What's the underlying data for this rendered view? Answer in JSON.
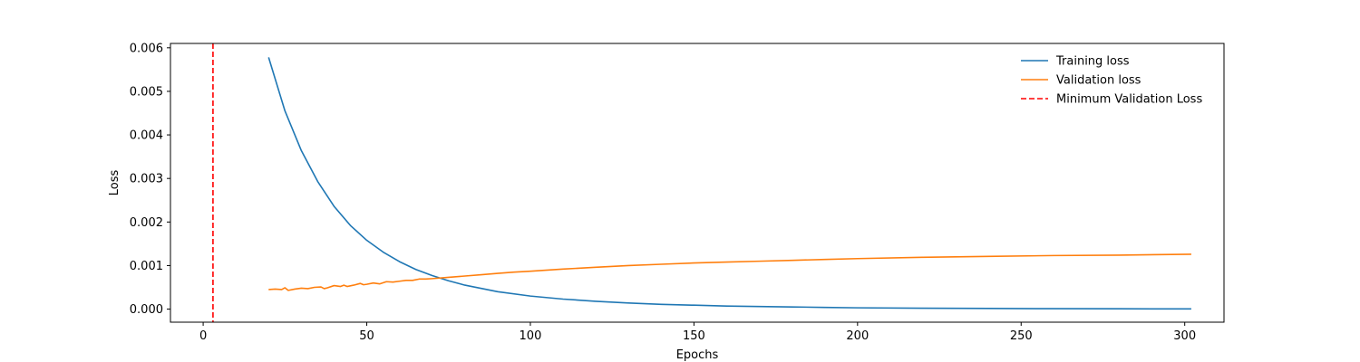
{
  "chart_data": {
    "type": "line",
    "title": "",
    "xlabel": "Epochs",
    "ylabel": "Loss",
    "xlim": [
      -10,
      312
    ],
    "ylim": [
      -0.0003,
      0.0061
    ],
    "xticks": [
      0,
      50,
      100,
      150,
      200,
      250,
      300
    ],
    "yticks": [
      0.0,
      0.001,
      0.002,
      0.003,
      0.004,
      0.005,
      0.006
    ],
    "ytick_labels": [
      "0.000",
      "0.001",
      "0.002",
      "0.003",
      "0.004",
      "0.005",
      "0.006"
    ],
    "grid": false,
    "legend_position": "top-right",
    "series": [
      {
        "name": "Training loss",
        "color": "#1f77b4",
        "x": [
          20,
          25,
          30,
          35,
          40,
          45,
          50,
          55,
          60,
          65,
          70,
          75,
          80,
          90,
          100,
          110,
          120,
          130,
          140,
          150,
          160,
          170,
          180,
          190,
          200,
          220,
          240,
          260,
          280,
          302
        ],
        "y": [
          0.00578,
          0.00455,
          0.00364,
          0.00293,
          0.00236,
          0.00192,
          0.00158,
          0.00131,
          0.00109,
          0.00091,
          0.00077,
          0.00065,
          0.00055,
          0.0004,
          0.0003,
          0.00023,
          0.00018,
          0.00014,
          0.00011,
          9e-05,
          7e-05,
          6e-05,
          5e-05,
          4e-05,
          3e-05,
          2e-05,
          1.5e-05,
          1e-05,
          7e-06,
          5e-06
        ]
      },
      {
        "name": "Validation loss",
        "color": "#ff7f0e",
        "x": [
          20,
          22,
          24,
          25,
          26,
          28,
          30,
          32,
          34,
          36,
          37,
          38,
          40,
          42,
          43,
          44,
          46,
          48,
          49,
          50,
          52,
          54,
          56,
          58,
          60,
          62,
          64,
          66,
          68,
          70,
          75,
          80,
          85,
          90,
          95,
          100,
          110,
          120,
          130,
          140,
          150,
          160,
          170,
          180,
          190,
          200,
          220,
          240,
          260,
          280,
          302
        ],
        "y": [
          0.00045,
          0.00046,
          0.00045,
          0.00049,
          0.00043,
          0.00046,
          0.00048,
          0.00047,
          0.0005,
          0.00051,
          0.00047,
          0.00049,
          0.00054,
          0.00052,
          0.00055,
          0.00052,
          0.00055,
          0.00059,
          0.00056,
          0.00057,
          0.0006,
          0.00058,
          0.00063,
          0.00062,
          0.00064,
          0.00066,
          0.00066,
          0.00069,
          0.00069,
          0.0007,
          0.00073,
          0.00076,
          0.00079,
          0.00082,
          0.00085,
          0.00087,
          0.00092,
          0.00096,
          0.001,
          0.00103,
          0.00106,
          0.00108,
          0.0011,
          0.00112,
          0.00114,
          0.00116,
          0.00119,
          0.00121,
          0.00123,
          0.00124,
          0.00126
        ]
      }
    ],
    "vline": {
      "name": "Minimum Validation Loss",
      "x": 3,
      "color": "#ff0000",
      "style": "dashed"
    }
  }
}
